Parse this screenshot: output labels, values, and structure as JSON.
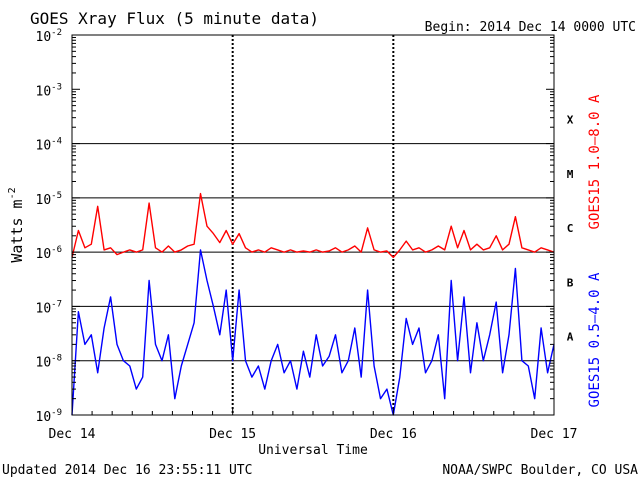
{
  "chart_data": {
    "type": "line",
    "title": "GOES Xray Flux (5 minute data)",
    "begin_label": "Begin:  2014 Dec 14 0000 UTC",
    "xlabel": "Universal Time",
    "ylabel": "Watts m",
    "ylabel_exponent": "-2",
    "y_scale": "log",
    "ylim": [
      1e-09,
      0.01
    ],
    "x_ticks": [
      "Dec 14",
      "Dec 15",
      "Dec 16",
      "Dec 17"
    ],
    "x_range_days": [
      0,
      3
    ],
    "y_ticks": [
      {
        "base": "10",
        "exp": "-9",
        "value": 1e-09
      },
      {
        "base": "10",
        "exp": "-8",
        "value": 1e-08
      },
      {
        "base": "10",
        "exp": "-7",
        "value": 1e-07
      },
      {
        "base": "10",
        "exp": "-6",
        "value": 1e-06
      },
      {
        "base": "10",
        "exp": "-5",
        "value": 1e-05
      },
      {
        "base": "10",
        "exp": "-4",
        "value": 0.0001
      },
      {
        "base": "10",
        "exp": "-3",
        "value": 0.001
      },
      {
        "base": "10",
        "exp": "-2",
        "value": 0.01
      }
    ],
    "flare_classes": [
      {
        "label": "X",
        "value": 0.0001
      },
      {
        "label": "M",
        "value": 1e-05
      },
      {
        "label": "C",
        "value": 1e-06
      },
      {
        "label": "B",
        "value": 1e-07
      },
      {
        "label": "A",
        "value": 1e-08
      }
    ],
    "grid": true,
    "series": [
      {
        "name": "GOES15 1.0–8.0 A",
        "color": "#ff0000",
        "x": [
          0,
          0.04,
          0.08,
          0.12,
          0.16,
          0.2,
          0.24,
          0.28,
          0.32,
          0.36,
          0.4,
          0.44,
          0.48,
          0.52,
          0.56,
          0.6,
          0.64,
          0.68,
          0.72,
          0.76,
          0.8,
          0.84,
          0.88,
          0.92,
          0.96,
          1.0,
          1.04,
          1.08,
          1.12,
          1.16,
          1.2,
          1.24,
          1.28,
          1.32,
          1.36,
          1.4,
          1.44,
          1.48,
          1.52,
          1.56,
          1.6,
          1.64,
          1.68,
          1.72,
          1.76,
          1.8,
          1.84,
          1.88,
          1.92,
          1.96,
          2.0,
          2.04,
          2.08,
          2.12,
          2.16,
          2.2,
          2.24,
          2.28,
          2.32,
          2.36,
          2.4,
          2.44,
          2.48,
          2.52,
          2.56,
          2.6,
          2.64,
          2.68,
          2.72,
          2.76,
          2.8,
          2.84,
          2.88,
          2.92,
          2.96,
          3.0
        ],
        "values": [
          8e-07,
          2.5e-06,
          1.2e-06,
          1.4e-06,
          7e-06,
          1.1e-06,
          1.2e-06,
          9e-07,
          1e-06,
          1.1e-06,
          1e-06,
          1.1e-06,
          8e-06,
          1.2e-06,
          1e-06,
          1.3e-06,
          1e-06,
          1.1e-06,
          1.3e-06,
          1.4e-06,
          1.2e-05,
          3e-06,
          2.2e-06,
          1.5e-06,
          2.5e-06,
          1.4e-06,
          2.2e-06,
          1.2e-06,
          1e-06,
          1.1e-06,
          1e-06,
          1.2e-06,
          1.1e-06,
          1e-06,
          1.1e-06,
          1e-06,
          1.05e-06,
          1e-06,
          1.1e-06,
          1e-06,
          1.05e-06,
          1.2e-06,
          1e-06,
          1.1e-06,
          1.3e-06,
          1e-06,
          2.8e-06,
          1.1e-06,
          1e-06,
          1.05e-06,
          8e-07,
          1.1e-06,
          1.6e-06,
          1.1e-06,
          1.2e-06,
          1e-06,
          1.1e-06,
          1.3e-06,
          1.1e-06,
          3e-06,
          1.2e-06,
          2.5e-06,
          1.1e-06,
          1.4e-06,
          1.1e-06,
          1.2e-06,
          2e-06,
          1.1e-06,
          1.4e-06,
          4.5e-06,
          1.2e-06,
          1.1e-06,
          1e-06,
          1.2e-06,
          1.1e-06,
          1e-06
        ]
      },
      {
        "name": "GOES15 0.5–4.0 A",
        "color": "#0000ff",
        "x": [
          0,
          0.04,
          0.08,
          0.12,
          0.16,
          0.2,
          0.24,
          0.28,
          0.32,
          0.36,
          0.4,
          0.44,
          0.48,
          0.52,
          0.56,
          0.6,
          0.64,
          0.68,
          0.72,
          0.76,
          0.8,
          0.84,
          0.88,
          0.92,
          0.96,
          1.0,
          1.04,
          1.08,
          1.12,
          1.16,
          1.2,
          1.24,
          1.28,
          1.32,
          1.36,
          1.4,
          1.44,
          1.48,
          1.52,
          1.56,
          1.6,
          1.64,
          1.68,
          1.72,
          1.76,
          1.8,
          1.84,
          1.88,
          1.92,
          1.96,
          2.0,
          2.04,
          2.08,
          2.12,
          2.16,
          2.2,
          2.24,
          2.28,
          2.32,
          2.36,
          2.4,
          2.44,
          2.48,
          2.52,
          2.56,
          2.6,
          2.64,
          2.68,
          2.72,
          2.76,
          2.8,
          2.84,
          2.88,
          2.92,
          2.96,
          3.0
        ],
        "values": [
          1e-09,
          8e-08,
          2e-08,
          3e-08,
          6e-09,
          4e-08,
          1.5e-07,
          2e-08,
          1e-08,
          8e-09,
          3e-09,
          5e-09,
          3e-07,
          2e-08,
          1e-08,
          3e-08,
          2e-09,
          8e-09,
          2e-08,
          5e-08,
          1.1e-06,
          3e-07,
          1e-07,
          3e-08,
          2e-07,
          1e-08,
          2e-07,
          1e-08,
          5e-09,
          8e-09,
          3e-09,
          1e-08,
          2e-08,
          6e-09,
          1e-08,
          3e-09,
          1.5e-08,
          5e-09,
          3e-08,
          8e-09,
          1.2e-08,
          3e-08,
          6e-09,
          1e-08,
          4e-08,
          5e-09,
          2e-07,
          8e-09,
          2e-09,
          3e-09,
          1e-09,
          5e-09,
          6e-08,
          2e-08,
          4e-08,
          6e-09,
          1e-08,
          3e-08,
          2e-09,
          3e-07,
          1e-08,
          1.5e-07,
          6e-09,
          5e-08,
          1e-08,
          3e-08,
          1.2e-07,
          6e-09,
          3e-08,
          5e-07,
          1e-08,
          8e-09,
          2e-09,
          4e-08,
          6e-09,
          2e-08
        ]
      }
    ]
  },
  "footer": {
    "updated": "Updated 2014 Dec 16 23:55:11 UTC",
    "credit": "NOAA/SWPC Boulder, CO USA"
  }
}
